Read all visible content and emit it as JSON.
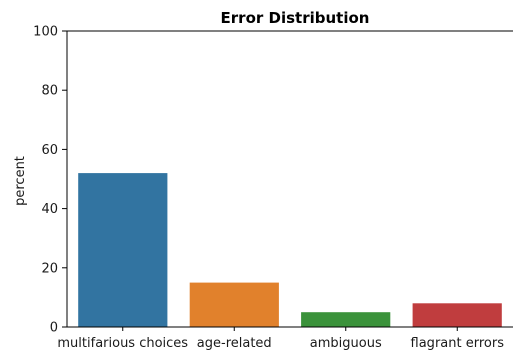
{
  "chart_data": {
    "type": "bar",
    "title": "Error Distribution",
    "xlabel": "",
    "ylabel": "percent",
    "categories": [
      "multifarious choices",
      "age-related",
      "ambiguous",
      "flagrant errors"
    ],
    "values": [
      52,
      15,
      5,
      8
    ],
    "colors": [
      "#3274a1",
      "#e1812c",
      "#3a923a",
      "#c03d3e"
    ],
    "ylim": [
      0,
      100
    ],
    "yticks": [
      0,
      20,
      40,
      60,
      80,
      100
    ],
    "grid": false
  }
}
